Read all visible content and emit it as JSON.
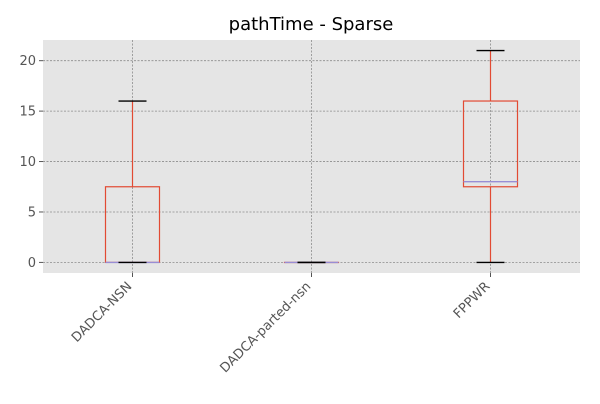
{
  "chart_data": {
    "type": "box",
    "title": "pathTime - Sparse",
    "xlabel": "",
    "ylabel": "",
    "ylim": [
      -1.05,
      22.05
    ],
    "yticks": [
      0,
      5,
      10,
      15,
      20
    ],
    "grid": true,
    "categories": [
      "DADCA-NSN",
      "DADCA-parted-nsn",
      "FPPWR"
    ],
    "boxes": [
      {
        "category": "DADCA-NSN",
        "whisker_low": 0,
        "q1": 0,
        "median": 0,
        "q3": 7.5,
        "whisker_high": 16
      },
      {
        "category": "DADCA-parted-nsn",
        "whisker_low": 0,
        "q1": 0,
        "median": 0,
        "q3": 0,
        "whisker_high": 0
      },
      {
        "category": "FPPWR",
        "whisker_low": 0,
        "q1": 7.5,
        "median": 8,
        "q3": 16,
        "whisker_high": 21
      }
    ],
    "colors": {
      "plot_background": "#e5e5e5",
      "grid": "#8c8c8c",
      "box": "#e24a33",
      "median": "#988ed5",
      "cap": "#000000",
      "tick_label": "#555555",
      "title": "#000000"
    }
  }
}
